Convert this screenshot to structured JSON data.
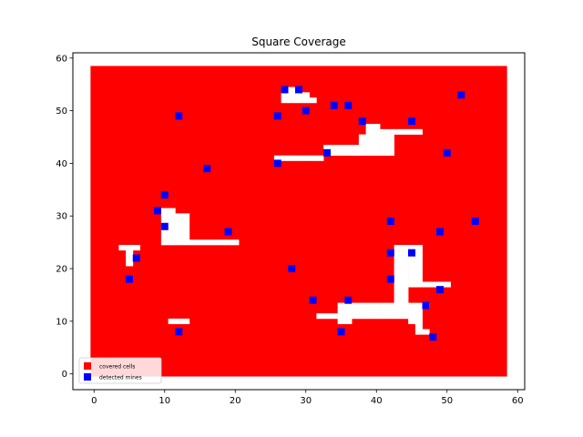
{
  "chart_data": {
    "type": "scatter",
    "title": "Square Coverage",
    "xlabel": "",
    "ylabel": "",
    "xlim": [
      -3,
      61
    ],
    "ylim": [
      -3,
      61
    ],
    "x_ticks": [
      0,
      10,
      20,
      30,
      40,
      50,
      60
    ],
    "y_ticks": [
      0,
      10,
      20,
      30,
      40,
      50,
      60
    ],
    "grid": false,
    "legend_position": "bottom-left",
    "covered_region": {
      "x_range": [
        -0.5,
        58.5
      ],
      "y_range": [
        -0.5,
        58.5
      ],
      "uncovered_cells": [
        [
          26,
          41
        ],
        [
          27,
          41
        ],
        [
          28,
          41
        ],
        [
          29,
          41
        ],
        [
          30,
          41
        ],
        [
          31,
          41
        ],
        [
          32,
          41
        ],
        [
          33,
          42
        ],
        [
          34,
          42
        ],
        [
          35,
          42
        ],
        [
          36,
          42
        ],
        [
          37,
          42
        ],
        [
          38,
          42
        ],
        [
          39,
          42
        ],
        [
          40,
          42
        ],
        [
          41,
          42
        ],
        [
          42,
          42
        ],
        [
          33,
          43
        ],
        [
          34,
          43
        ],
        [
          35,
          43
        ],
        [
          36,
          43
        ],
        [
          37,
          43
        ],
        [
          38,
          43
        ],
        [
          39,
          43
        ],
        [
          40,
          43
        ],
        [
          41,
          43
        ],
        [
          42,
          43
        ],
        [
          38,
          44
        ],
        [
          39,
          44
        ],
        [
          40,
          44
        ],
        [
          41,
          44
        ],
        [
          42,
          44
        ],
        [
          38,
          45
        ],
        [
          39,
          45
        ],
        [
          40,
          45
        ],
        [
          41,
          45
        ],
        [
          42,
          45
        ],
        [
          39,
          46
        ],
        [
          40,
          46
        ],
        [
          41,
          46
        ],
        [
          42,
          46
        ],
        [
          43,
          46
        ],
        [
          44,
          46
        ],
        [
          45,
          46
        ],
        [
          46,
          46
        ],
        [
          39,
          47
        ],
        [
          40,
          47
        ],
        [
          27,
          52
        ],
        [
          28,
          52
        ],
        [
          29,
          52
        ],
        [
          30,
          52
        ],
        [
          31,
          52
        ],
        [
          27,
          53
        ],
        [
          28,
          53
        ],
        [
          29,
          53
        ],
        [
          30,
          53
        ],
        [
          27,
          54
        ],
        [
          28,
          54
        ],
        [
          10,
          26
        ],
        [
          10,
          27
        ],
        [
          10,
          28
        ],
        [
          10,
          29
        ],
        [
          10,
          30
        ],
        [
          10,
          31
        ],
        [
          11,
          26
        ],
        [
          11,
          27
        ],
        [
          11,
          28
        ],
        [
          11,
          29
        ],
        [
          11,
          30
        ],
        [
          11,
          31
        ],
        [
          12,
          26
        ],
        [
          12,
          27
        ],
        [
          12,
          28
        ],
        [
          12,
          29
        ],
        [
          12,
          30
        ],
        [
          13,
          26
        ],
        [
          13,
          27
        ],
        [
          13,
          28
        ],
        [
          13,
          29
        ],
        [
          13,
          30
        ],
        [
          10,
          25
        ],
        [
          11,
          25
        ],
        [
          12,
          25
        ],
        [
          13,
          25
        ],
        [
          14,
          25
        ],
        [
          15,
          25
        ],
        [
          16,
          25
        ],
        [
          17,
          25
        ],
        [
          18,
          25
        ],
        [
          19,
          25
        ],
        [
          20,
          25
        ],
        [
          4,
          24
        ],
        [
          5,
          24
        ],
        [
          6,
          24
        ],
        [
          5,
          21
        ],
        [
          5,
          22
        ],
        [
          5,
          23
        ],
        [
          11,
          10
        ],
        [
          12,
          10
        ],
        [
          13,
          10
        ],
        [
          43,
          13
        ],
        [
          43,
          14
        ],
        [
          43,
          15
        ],
        [
          43,
          16
        ],
        [
          43,
          17
        ],
        [
          43,
          18
        ],
        [
          43,
          19
        ],
        [
          43,
          20
        ],
        [
          43,
          21
        ],
        [
          43,
          22
        ],
        [
          43,
          23
        ],
        [
          43,
          24
        ],
        [
          44,
          14
        ],
        [
          44,
          15
        ],
        [
          44,
          16
        ],
        [
          44,
          17
        ],
        [
          44,
          18
        ],
        [
          44,
          19
        ],
        [
          44,
          20
        ],
        [
          44,
          21
        ],
        [
          44,
          22
        ],
        [
          44,
          23
        ],
        [
          44,
          24
        ],
        [
          45,
          17
        ],
        [
          45,
          18
        ],
        [
          45,
          19
        ],
        [
          45,
          20
        ],
        [
          45,
          21
        ],
        [
          45,
          22
        ],
        [
          45,
          23
        ],
        [
          45,
          24
        ],
        [
          46,
          17
        ],
        [
          46,
          18
        ],
        [
          46,
          19
        ],
        [
          46,
          20
        ],
        [
          46,
          21
        ],
        [
          46,
          22
        ],
        [
          46,
          23
        ],
        [
          46,
          24
        ],
        [
          47,
          17
        ],
        [
          48,
          17
        ],
        [
          49,
          17
        ],
        [
          50,
          17
        ],
        [
          35,
          12
        ],
        [
          36,
          12
        ],
        [
          37,
          12
        ],
        [
          38,
          12
        ],
        [
          39,
          12
        ],
        [
          40,
          12
        ],
        [
          41,
          12
        ],
        [
          42,
          12
        ],
        [
          43,
          12
        ],
        [
          44,
          12
        ],
        [
          45,
          12
        ],
        [
          46,
          12
        ],
        [
          35,
          13
        ],
        [
          36,
          13
        ],
        [
          37,
          13
        ],
        [
          38,
          13
        ],
        [
          39,
          13
        ],
        [
          40,
          13
        ],
        [
          41,
          13
        ],
        [
          42,
          13
        ],
        [
          44,
          13
        ],
        [
          45,
          13
        ],
        [
          46,
          13
        ],
        [
          47,
          13
        ],
        [
          32,
          11
        ],
        [
          33,
          11
        ],
        [
          34,
          11
        ],
        [
          35,
          11
        ],
        [
          36,
          11
        ],
        [
          37,
          11
        ],
        [
          38,
          11
        ],
        [
          39,
          11
        ],
        [
          40,
          11
        ],
        [
          41,
          11
        ],
        [
          42,
          11
        ],
        [
          43,
          11
        ],
        [
          44,
          11
        ],
        [
          45,
          11
        ],
        [
          46,
          11
        ],
        [
          35,
          10
        ],
        [
          36,
          10
        ],
        [
          45,
          10
        ],
        [
          46,
          10
        ],
        [
          46,
          9
        ],
        [
          46,
          8
        ],
        [
          47,
          8
        ]
      ]
    },
    "series": [
      {
        "name": "covered cells",
        "color": "#ff0000",
        "marker": "square-cells"
      },
      {
        "name": "detected mines",
        "color": "#0000ff",
        "marker": "square",
        "points": [
          [
            27,
            54
          ],
          [
            29,
            54
          ],
          [
            52,
            53
          ],
          [
            34,
            51
          ],
          [
            36,
            51
          ],
          [
            30,
            50
          ],
          [
            12,
            49
          ],
          [
            26,
            49
          ],
          [
            38,
            48
          ],
          [
            45,
            48
          ],
          [
            33,
            42
          ],
          [
            50,
            42
          ],
          [
            26,
            40
          ],
          [
            16,
            39
          ],
          [
            10,
            34
          ],
          [
            9,
            31
          ],
          [
            42,
            29
          ],
          [
            54,
            29
          ],
          [
            10,
            28
          ],
          [
            19,
            27
          ],
          [
            49,
            27
          ],
          [
            42,
            23
          ],
          [
            45,
            23
          ],
          [
            6,
            22
          ],
          [
            28,
            20
          ],
          [
            5,
            18
          ],
          [
            42,
            18
          ],
          [
            49,
            16
          ],
          [
            31,
            14
          ],
          [
            36,
            14
          ],
          [
            47,
            13
          ],
          [
            12,
            8
          ],
          [
            35,
            8
          ],
          [
            48,
            7
          ]
        ]
      }
    ]
  }
}
